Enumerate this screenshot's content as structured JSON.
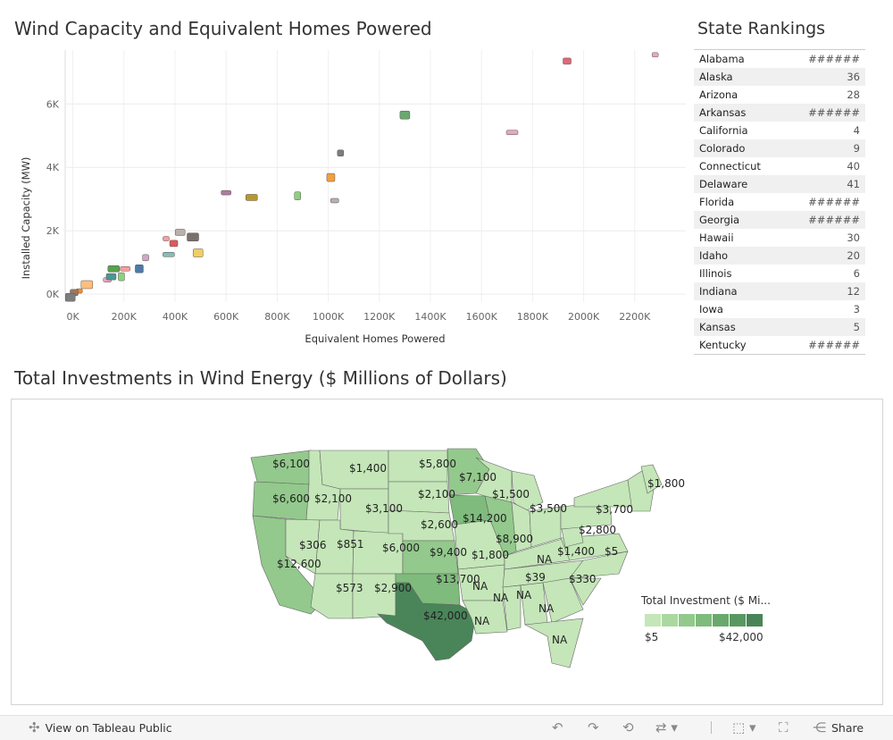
{
  "scatter": {
    "title": "Wind Capacity and Equivalent Homes Powered",
    "xlabel": "Equivalent Homes Powered",
    "ylabel": "Installed Capacity (MW)",
    "x_ticks": [
      "0K",
      "200K",
      "400K",
      "600K",
      "800K",
      "1000K",
      "1200K",
      "1400K",
      "1600K",
      "1800K",
      "2000K",
      "2200K"
    ],
    "y_ticks": [
      "0K",
      "2K",
      "4K",
      "6K"
    ]
  },
  "chart_data": {
    "type": "scatter",
    "xlabel": "Equivalent Homes Powered",
    "ylabel": "Installed Capacity (MW)",
    "xlim": [
      -30000,
      2400000
    ],
    "ylim": [
      -250,
      7700
    ],
    "points": [
      {
        "x": 2280000,
        "y": 7550,
        "color": "#e8a6bf"
      },
      {
        "x": 1935000,
        "y": 7350,
        "color": "#dc6a78"
      },
      {
        "x": 1300000,
        "y": 5650,
        "color": "#6aa870"
      },
      {
        "x": 1720000,
        "y": 5100,
        "color": "#e8a6bf"
      },
      {
        "x": 1048000,
        "y": 4450,
        "color": "#7d7d7d"
      },
      {
        "x": 1010000,
        "y": 3680,
        "color": "#f2a03d"
      },
      {
        "x": 600000,
        "y": 3200,
        "color": "#b07aa1"
      },
      {
        "x": 700000,
        "y": 3050,
        "color": "#b6992d"
      },
      {
        "x": 880000,
        "y": 3100,
        "color": "#8cd17d"
      },
      {
        "x": 1025000,
        "y": 2950,
        "color": "#bab0ac"
      },
      {
        "x": 420000,
        "y": 1950,
        "color": "#bab0ac"
      },
      {
        "x": 470000,
        "y": 1800,
        "color": "#79706e"
      },
      {
        "x": 365000,
        "y": 1750,
        "color": "#ff9d9a"
      },
      {
        "x": 395000,
        "y": 1600,
        "color": "#e15759"
      },
      {
        "x": 490000,
        "y": 1300,
        "color": "#f1ce63"
      },
      {
        "x": 375000,
        "y": 1250,
        "color": "#86bcb6"
      },
      {
        "x": 285000,
        "y": 1150,
        "color": "#d4a6c8"
      },
      {
        "x": 260000,
        "y": 800,
        "color": "#4e79a7"
      },
      {
        "x": 205000,
        "y": 800,
        "color": "#ff9d9a"
      },
      {
        "x": 160000,
        "y": 800,
        "color": "#59a14f"
      },
      {
        "x": 190000,
        "y": 550,
        "color": "#8cd17d"
      },
      {
        "x": 135000,
        "y": 450,
        "color": "#e8a6bf"
      },
      {
        "x": 150000,
        "y": 550,
        "color": "#499894"
      },
      {
        "x": 55000,
        "y": 300,
        "color": "#ffbe7d"
      },
      {
        "x": 25000,
        "y": 100,
        "color": "#f28e2b"
      },
      {
        "x": 5000,
        "y": 50,
        "color": "#9d7660"
      },
      {
        "x": -10000,
        "y": -100,
        "color": "#7d7d7d"
      }
    ]
  },
  "rankings": {
    "title": "State Rankings",
    "rows": [
      {
        "state": "Alabama",
        "rank": "######"
      },
      {
        "state": "Alaska",
        "rank": "36"
      },
      {
        "state": "Arizona",
        "rank": "28"
      },
      {
        "state": "Arkansas",
        "rank": "######"
      },
      {
        "state": "California",
        "rank": "4"
      },
      {
        "state": "Colorado",
        "rank": "9"
      },
      {
        "state": "Connecticut",
        "rank": "40"
      },
      {
        "state": "Delaware",
        "rank": "41"
      },
      {
        "state": "Florida",
        "rank": "######"
      },
      {
        "state": "Georgia",
        "rank": "######"
      },
      {
        "state": "Hawaii",
        "rank": "30"
      },
      {
        "state": "Idaho",
        "rank": "20"
      },
      {
        "state": "Illinois",
        "rank": "6"
      },
      {
        "state": "Indiana",
        "rank": "12"
      },
      {
        "state": "Iowa",
        "rank": "3"
      },
      {
        "state": "Kansas",
        "rank": "5"
      },
      {
        "state": "Kentucky",
        "rank": "######"
      }
    ]
  },
  "map": {
    "title": "Total Investments in Wind Energy ($ Millions of Dollars)",
    "legend_title": "Total Investment ($ Mi...",
    "legend_min": "$5",
    "legend_max": "$42,000",
    "legend_colors": [
      "#c4e6b8",
      "#aad8a0",
      "#93c98c",
      "#7fbb7c",
      "#6aa96c",
      "#5a9862",
      "#4a8559"
    ],
    "labels": [
      {
        "text": "$6,100",
        "x": 292,
        "y": 76
      },
      {
        "text": "$1,400",
        "x": 378,
        "y": 81
      },
      {
        "text": "$5,800",
        "x": 456,
        "y": 76
      },
      {
        "text": "$7,100",
        "x": 501,
        "y": 91
      },
      {
        "text": "$6,600",
        "x": 292,
        "y": 115
      },
      {
        "text": "$2,100",
        "x": 339,
        "y": 115
      },
      {
        "text": "$2,100",
        "x": 455,
        "y": 110
      },
      {
        "text": "$1,500",
        "x": 538,
        "y": 110
      },
      {
        "text": "$3,100",
        "x": 396,
        "y": 126
      },
      {
        "text": "$3,500",
        "x": 580,
        "y": 126
      },
      {
        "text": "$1,800",
        "x": 712,
        "y": 98
      },
      {
        "text": "$3,700",
        "x": 654,
        "y": 127
      },
      {
        "text": "$14,200",
        "x": 505,
        "y": 137
      },
      {
        "text": "$2,600",
        "x": 458,
        "y": 144
      },
      {
        "text": "$2,800",
        "x": 635,
        "y": 150
      },
      {
        "text": "$8,900",
        "x": 542,
        "y": 160
      },
      {
        "text": "$306",
        "x": 322,
        "y": 167
      },
      {
        "text": "$851",
        "x": 364,
        "y": 166
      },
      {
        "text": "$6,000",
        "x": 415,
        "y": 170
      },
      {
        "text": "$9,400",
        "x": 468,
        "y": 175
      },
      {
        "text": "$1,800",
        "x": 515,
        "y": 178
      },
      {
        "text": "$1,400",
        "x": 611,
        "y": 174
      },
      {
        "text": "$5",
        "x": 664,
        "y": 174
      },
      {
        "text": "NA",
        "x": 588,
        "y": 183
      },
      {
        "text": "$12,600",
        "x": 297,
        "y": 188
      },
      {
        "text": "$13,700",
        "x": 475,
        "y": 205
      },
      {
        "text": "$39",
        "x": 575,
        "y": 203
      },
      {
        "text": "$330",
        "x": 624,
        "y": 205
      },
      {
        "text": "NA",
        "x": 516,
        "y": 213
      },
      {
        "text": "$573",
        "x": 363,
        "y": 215
      },
      {
        "text": "$2,900",
        "x": 406,
        "y": 215
      },
      {
        "text": "NA",
        "x": 565,
        "y": 223
      },
      {
        "text": "NA",
        "x": 539,
        "y": 226
      },
      {
        "text": "NA",
        "x": 590,
        "y": 238
      },
      {
        "text": "$42,000",
        "x": 461,
        "y": 246
      },
      {
        "text": "NA",
        "x": 518,
        "y": 252
      },
      {
        "text": "NA",
        "x": 605,
        "y": 273
      }
    ]
  },
  "footer": {
    "view_label": "View on Tableau Public",
    "share_label": "Share"
  }
}
